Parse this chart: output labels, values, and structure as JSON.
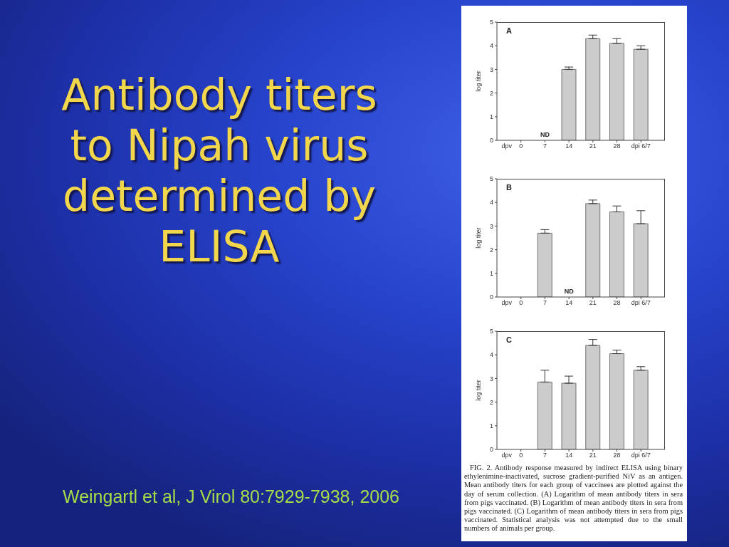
{
  "chart_data": [
    {
      "type": "other",
      "title": "Antibody titers to Nipah virus determined by ELISA",
      "annotations": [
        "Weingartl et al, J Virol 80:7929-7938, 2006"
      ]
    },
    {
      "type": "bar",
      "categories": [
        "0",
        "7",
        "14",
        "21",
        "28",
        "dpi 6/7"
      ],
      "values": [
        null,
        null,
        3.0,
        4.3,
        4.1,
        3.85
      ],
      "value_labels": [
        null,
        "ND",
        null,
        null,
        null,
        null
      ],
      "errors": [
        null,
        null,
        [
          3.0,
          3.1
        ],
        [
          4.3,
          4.45
        ],
        [
          4.1,
          4.3
        ],
        [
          3.85,
          4.0
        ]
      ],
      "color": "#cccccc",
      "xlabel": "dpv",
      "ylabel": "log titer",
      "ylim": [
        0,
        5
      ],
      "yticks": [
        0,
        1,
        2,
        3,
        4,
        5
      ],
      "annotations": [
        "A"
      ]
    },
    {
      "type": "bar",
      "categories": [
        "0",
        "7",
        "14",
        "21",
        "28",
        "dpi 6/7"
      ],
      "values": [
        null,
        2.7,
        null,
        3.95,
        3.6,
        3.1
      ],
      "value_labels": [
        null,
        null,
        "ND",
        null,
        null,
        null
      ],
      "errors": [
        null,
        [
          2.7,
          2.85
        ],
        null,
        [
          3.95,
          4.1
        ],
        [
          3.6,
          3.85
        ],
        [
          3.1,
          3.65
        ]
      ],
      "color": "#cccccc",
      "xlabel": "dpv",
      "ylabel": "log titer",
      "ylim": [
        0,
        5
      ],
      "yticks": [
        0,
        1,
        2,
        3,
        4,
        5
      ],
      "annotations": [
        "B"
      ]
    },
    {
      "type": "bar",
      "categories": [
        "0",
        "7",
        "14",
        "21",
        "28",
        "dpi 6/7"
      ],
      "values": [
        null,
        2.85,
        2.8,
        4.4,
        4.05,
        3.35
      ],
      "errors": [
        null,
        [
          2.85,
          3.35
        ],
        [
          2.8,
          3.1
        ],
        [
          4.4,
          4.65
        ],
        [
          4.05,
          4.2
        ],
        [
          3.35,
          3.5
        ]
      ],
      "color": "#cccccc",
      "xlabel": "dpv",
      "ylabel": "log titer",
      "ylim": [
        0,
        5
      ],
      "yticks": [
        0,
        1,
        2,
        3,
        4,
        5
      ],
      "annotations": [
        "C",
        "FIG. 2. Antibody response measured by indirect ELISA using binary ethylenimine-inactivated, sucrose gradient-purified NiV as an antigen. Mean antibody titers for each group of vaccinees are plotted against the day of serum collection. (A) Logarithm of mean antibody titers in sera from pigs vaccinated. (B) Logarithm of mean antibody titers in sera from pigs vaccinated. (C) Logarithm of mean antibody titers in sera from pigs vaccinated. Statistical analysis was not attempted due to the small numbers of animals per group."
      ]
    }
  ]
}
